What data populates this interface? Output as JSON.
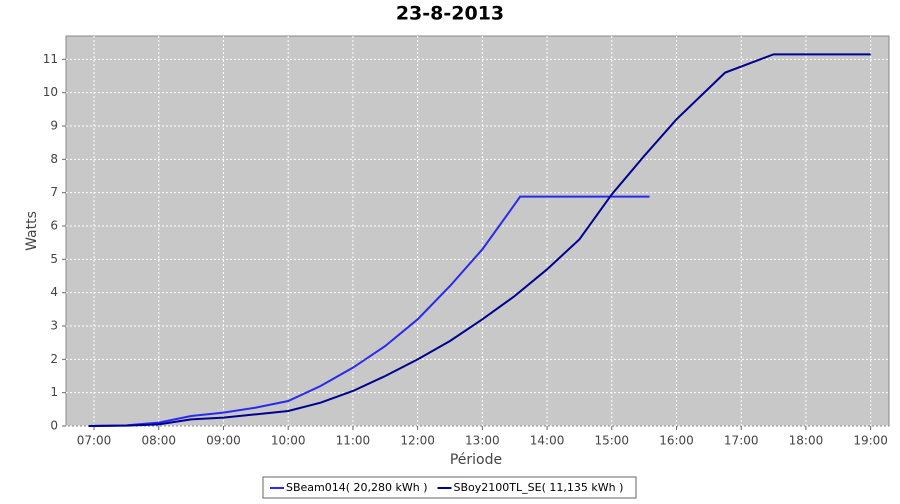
{
  "chart_data": {
    "type": "line",
    "title": "23-8-2013",
    "x_label": "Période",
    "y_label": "Watts",
    "xlim": [
      "06:34",
      "19:17"
    ],
    "xticks": [
      "07:00",
      "08:00",
      "09:00",
      "10:00",
      "11:00",
      "12:00",
      "13:00",
      "14:00",
      "15:00",
      "16:00",
      "17:00",
      "18:00",
      "19:00"
    ],
    "ylim": [
      0,
      11.7
    ],
    "yticks": [
      0,
      1,
      2,
      3,
      4,
      5,
      6,
      7,
      8,
      9,
      10,
      11
    ],
    "grid": true,
    "series": [
      {
        "name": "SBeam014( 20,280 kWh )",
        "color": "#2a2aee",
        "x": [
          "06:55",
          "07:30",
          "08:00",
          "08:30",
          "09:00",
          "09:30",
          "10:00",
          "10:30",
          "11:00",
          "11:30",
          "12:00",
          "12:30",
          "13:00",
          "13:30",
          "13:35",
          "15:35"
        ],
        "values": [
          0,
          0.02,
          0.1,
          0.3,
          0.4,
          0.55,
          0.75,
          1.2,
          1.75,
          2.4,
          3.2,
          4.2,
          5.3,
          6.65,
          6.88,
          6.88
        ]
      },
      {
        "name": "SBoy2100TL_SE( 11,135 kWh )",
        "color": "#00008f",
        "x": [
          "06:55",
          "07:30",
          "08:00",
          "08:30",
          "09:00",
          "09:30",
          "10:00",
          "10:30",
          "11:00",
          "11:30",
          "12:00",
          "12:30",
          "13:00",
          "13:30",
          "14:00",
          "14:30",
          "15:00",
          "15:30",
          "16:00",
          "16:45",
          "17:30",
          "19:00"
        ],
        "values": [
          0,
          0.01,
          0.05,
          0.2,
          0.25,
          0.35,
          0.45,
          0.7,
          1.05,
          1.5,
          2.0,
          2.55,
          3.2,
          3.9,
          4.7,
          5.6,
          6.95,
          8.1,
          9.2,
          10.6,
          11.15,
          11.15
        ]
      }
    ]
  }
}
